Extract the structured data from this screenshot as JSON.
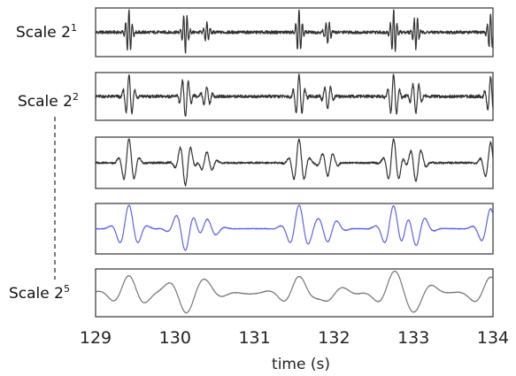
{
  "chart_data": {
    "type": "line",
    "title": "",
    "xlabel": "time (s)",
    "ylabel": "",
    "xlim": [
      129,
      134
    ],
    "x_ticks": [
      129,
      130,
      131,
      132,
      133,
      134
    ],
    "x_tick_labels": [
      "129",
      "130",
      "131",
      "132",
      "133",
      "134"
    ],
    "grid": false,
    "legend": "none",
    "events": [
      {
        "t": 129.42,
        "amp": 1.0,
        "polarity": 1
      },
      {
        "t": 130.13,
        "amp": 0.95,
        "polarity": -1
      },
      {
        "t": 130.4,
        "amp": 0.45,
        "polarity": 1
      },
      {
        "t": 131.56,
        "amp": 1.0,
        "polarity": 1
      },
      {
        "t": 131.92,
        "amp": 0.55,
        "polarity": -1
      },
      {
        "t": 132.75,
        "amp": 1.0,
        "polarity": 1
      },
      {
        "t": 133.03,
        "amp": 0.75,
        "polarity": -1
      },
      {
        "t": 133.97,
        "amp": 0.85,
        "polarity": 1
      }
    ],
    "series": [
      {
        "label_base": "Scale 2",
        "label_exp": "1",
        "color": "#333333",
        "scale": 1
      },
      {
        "label_base": "Scale 2",
        "label_exp": "2",
        "color": "#333333",
        "scale": 2
      },
      {
        "label_base": "",
        "label_exp": "",
        "color": "#333333",
        "scale": 3
      },
      {
        "label_base": "",
        "label_exp": "",
        "color": "#5b63e6",
        "scale": 4
      },
      {
        "label_base": "Scale 2",
        "label_exp": "5",
        "color": "#777777",
        "scale": 5
      }
    ]
  }
}
